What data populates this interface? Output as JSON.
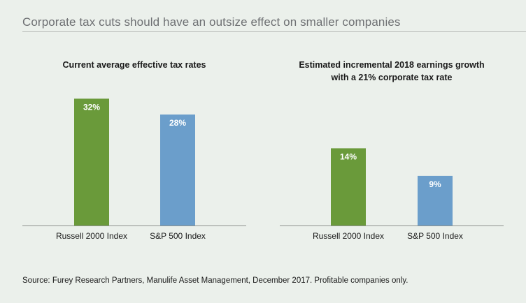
{
  "header": {
    "title": "Corporate tax cuts should have an outsize effect on smaller companies"
  },
  "charts": [
    {
      "title_line1": "Current average effective tax rates",
      "title_line2": ""
    },
    {
      "title_line1": "Estimated incremental 2018 earnings growth",
      "title_line2": "with a 21% corporate tax rate"
    }
  ],
  "footer": {
    "source": "Source: Furey Research Partners, Manulife Asset Management, December 2017. Profitable companies only."
  },
  "colors": {
    "green": "#6a9a3a",
    "blue": "#6b9ecb"
  },
  "chart_data": [
    {
      "type": "bar",
      "title": "Current average effective tax rates",
      "categories": [
        "Russell 2000 Index",
        "S&P 500 Index"
      ],
      "values": [
        32,
        28
      ],
      "value_labels": [
        "32%",
        "28%"
      ],
      "colors": [
        "#6a9a3a",
        "#6b9ecb"
      ],
      "ylim": [
        0,
        34
      ],
      "grid": false,
      "xlabel": "",
      "ylabel": ""
    },
    {
      "type": "bar",
      "title": "Estimated incremental 2018 earnings growth with a 21% corporate tax rate",
      "categories": [
        "Russell 2000 Index",
        "S&P 500 Index"
      ],
      "values": [
        14,
        9
      ],
      "value_labels": [
        "14%",
        "9%"
      ],
      "colors": [
        "#6a9a3a",
        "#6b9ecb"
      ],
      "ylim": [
        0,
        20
      ],
      "grid": false,
      "xlabel": "",
      "ylabel": ""
    }
  ]
}
